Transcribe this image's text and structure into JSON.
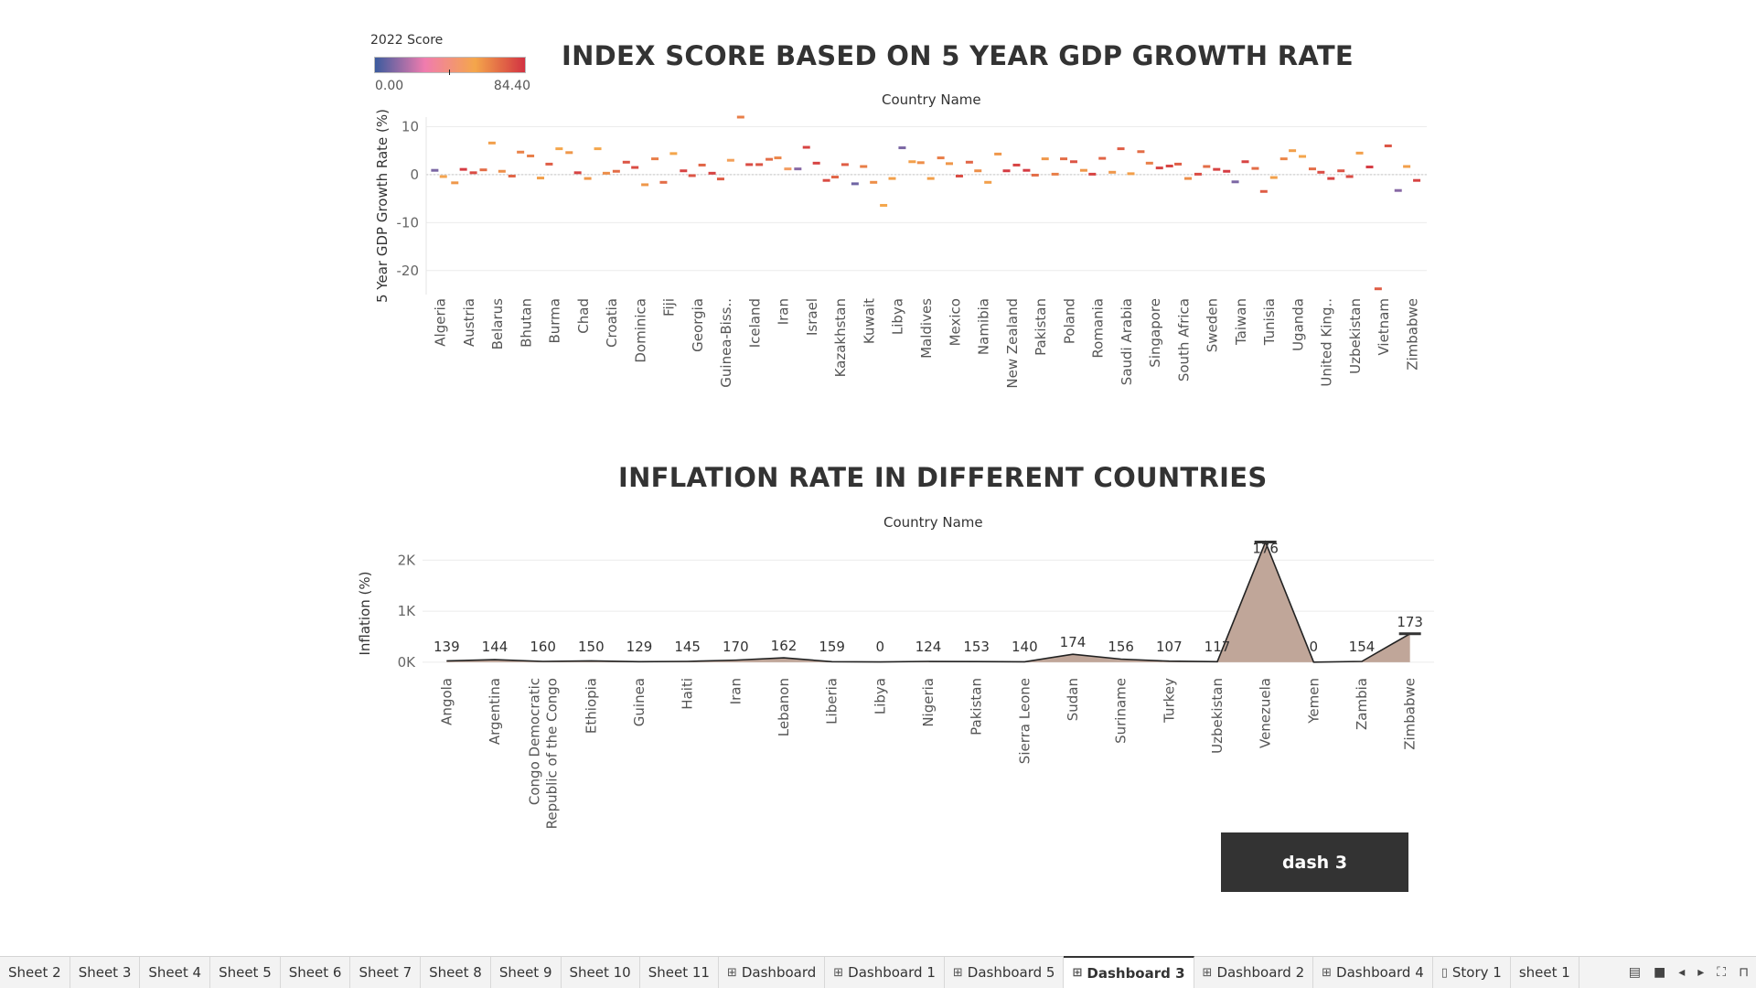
{
  "legend": {
    "title": "2022 Score",
    "min": "0.00",
    "max": "84.40",
    "colors": [
      "#3b5b9e",
      "#f07cae",
      "#f4a64b",
      "#d23242"
    ]
  },
  "chart1": {
    "title": "INDEX SCORE BASED ON 5 YEAR GDP GROWTH RATE",
    "top_label": "Country Name",
    "ylabel": "5 Year GDP Growth Rate (%)"
  },
  "chart2": {
    "title": "INFLATION RATE IN DIFFERENT COUNTRIES",
    "top_label": "Country Name",
    "ylabel": "Inflation (%)"
  },
  "button": {
    "label": "dash 3"
  },
  "tabs": [
    {
      "label": "Sheet 2",
      "icon": ""
    },
    {
      "label": "Sheet 3",
      "icon": ""
    },
    {
      "label": "Sheet 4",
      "icon": ""
    },
    {
      "label": "Sheet 5",
      "icon": ""
    },
    {
      "label": "Sheet 6",
      "icon": ""
    },
    {
      "label": "Sheet 7",
      "icon": ""
    },
    {
      "label": "Sheet 8",
      "icon": ""
    },
    {
      "label": "Sheet 9",
      "icon": ""
    },
    {
      "label": "Sheet 10",
      "icon": ""
    },
    {
      "label": "Sheet 11",
      "icon": ""
    },
    {
      "label": "Dashboard",
      "icon": "dashboard-icon"
    },
    {
      "label": "Dashboard 1",
      "icon": "dashboard-icon"
    },
    {
      "label": "Dashboard 5",
      "icon": "dashboard-icon"
    },
    {
      "label": "Dashboard 3",
      "icon": "dashboard-icon",
      "active": true
    },
    {
      "label": "Dashboard 2",
      "icon": "dashboard-icon"
    },
    {
      "label": "Dashboard 4",
      "icon": "dashboard-icon"
    },
    {
      "label": "Story 1",
      "icon": "story-icon"
    },
    {
      "label": "sheet 1",
      "icon": ""
    }
  ],
  "chart_data": [
    {
      "type": "scatter",
      "title": "INDEX SCORE BASED ON 5 YEAR GDP GROWTH RATE",
      "xlabel": "Country Name",
      "ylabel": "5 Year GDP Growth Rate (%)",
      "ylim": [
        -25,
        12
      ],
      "yticks": [
        10,
        0,
        -10,
        -20
      ],
      "grid": true,
      "color_encoding": "2022 Score",
      "categories": [
        "Algeria",
        "Austria",
        "Belarus",
        "Bhutan",
        "Burma",
        "Chad",
        "Croatia",
        "Dominica",
        "Fiji",
        "Georgia",
        "Guinea-Biss..",
        "Iceland",
        "Iran",
        "Israel",
        "Kazakhstan",
        "Kuwait",
        "Libya",
        "Maldives",
        "Mexico",
        "Namibia",
        "New Zealand",
        "Pakistan",
        "Poland",
        "Romania",
        "Saudi Arabia",
        "Singapore",
        "South Africa",
        "Sweden",
        "Taiwan",
        "Tunisia",
        "Uganda",
        "United King..",
        "Uzbekistan",
        "Vietnam",
        "Zimbabwe"
      ],
      "points": [
        {
          "i": 0.0,
          "y": 0.9,
          "s": 10
        },
        {
          "i": 0.3,
          "y": -0.4,
          "s": 55
        },
        {
          "i": 0.7,
          "y": -1.7,
          "s": 60
        },
        {
          "i": 1.0,
          "y": 1.1,
          "s": 82
        },
        {
          "i": 1.35,
          "y": 0.4,
          "s": 78
        },
        {
          "i": 1.7,
          "y": 1.0,
          "s": 70
        },
        {
          "i": 2.0,
          "y": 6.6,
          "s": 58
        },
        {
          "i": 2.35,
          "y": 0.7,
          "s": 62
        },
        {
          "i": 2.7,
          "y": -0.3,
          "s": 72
        },
        {
          "i": 3.0,
          "y": 4.7,
          "s": 65
        },
        {
          "i": 3.35,
          "y": 3.9,
          "s": 66
        },
        {
          "i": 3.7,
          "y": -0.7,
          "s": 58
        },
        {
          "i": 4.0,
          "y": 2.2,
          "s": 74
        },
        {
          "i": 4.35,
          "y": 5.4,
          "s": 56
        },
        {
          "i": 4.7,
          "y": 4.6,
          "s": 60
        },
        {
          "i": 5.0,
          "y": 0.4,
          "s": 80
        },
        {
          "i": 5.35,
          "y": -0.8,
          "s": 60
        },
        {
          "i": 5.7,
          "y": 5.4,
          "s": 56
        },
        {
          "i": 6.0,
          "y": 0.3,
          "s": 62
        },
        {
          "i": 6.35,
          "y": 0.7,
          "s": 70
        },
        {
          "i": 6.7,
          "y": 2.6,
          "s": 76
        },
        {
          "i": 7.0,
          "y": 1.5,
          "s": 78
        },
        {
          "i": 7.35,
          "y": -2.1,
          "s": 60
        },
        {
          "i": 7.7,
          "y": 3.3,
          "s": 66
        },
        {
          "i": 8.0,
          "y": -1.6,
          "s": 70
        },
        {
          "i": 8.35,
          "y": 4.4,
          "s": 56
        },
        {
          "i": 8.7,
          "y": 0.8,
          "s": 80
        },
        {
          "i": 9.0,
          "y": -0.2,
          "s": 76
        },
        {
          "i": 9.35,
          "y": 2.0,
          "s": 72
        },
        {
          "i": 9.7,
          "y": 0.3,
          "s": 80
        },
        {
          "i": 10.0,
          "y": -0.9,
          "s": 74
        },
        {
          "i": 10.35,
          "y": 3.0,
          "s": 52
        },
        {
          "i": 10.7,
          "y": 12.0,
          "s": 66
        },
        {
          "i": 11.0,
          "y": 2.1,
          "s": 78
        },
        {
          "i": 11.35,
          "y": 2.1,
          "s": 76
        },
        {
          "i": 11.7,
          "y": 3.2,
          "s": 70
        },
        {
          "i": 12.0,
          "y": 3.5,
          "s": 64
        },
        {
          "i": 12.35,
          "y": 1.2,
          "s": 50
        },
        {
          "i": 12.7,
          "y": 1.2,
          "s": 12
        },
        {
          "i": 13.0,
          "y": 5.7,
          "s": 80
        },
        {
          "i": 13.35,
          "y": 2.4,
          "s": 80
        },
        {
          "i": 13.7,
          "y": -1.2,
          "s": 78
        },
        {
          "i": 14.0,
          "y": -0.5,
          "s": 72
        },
        {
          "i": 14.35,
          "y": 2.1,
          "s": 74
        },
        {
          "i": 14.7,
          "y": -1.9,
          "s": 8
        },
        {
          "i": 15.0,
          "y": 1.7,
          "s": 66
        },
        {
          "i": 15.35,
          "y": -1.6,
          "s": 62
        },
        {
          "i": 15.7,
          "y": -6.4,
          "s": 56
        },
        {
          "i": 16.0,
          "y": -0.8,
          "s": 58
        },
        {
          "i": 16.35,
          "y": 5.6,
          "s": 10
        },
        {
          "i": 16.7,
          "y": 2.7,
          "s": 58
        },
        {
          "i": 17.0,
          "y": 2.5,
          "s": 62
        },
        {
          "i": 17.35,
          "y": -0.8,
          "s": 58
        },
        {
          "i": 17.7,
          "y": 3.5,
          "s": 66
        },
        {
          "i": 18.0,
          "y": 2.3,
          "s": 60
        },
        {
          "i": 18.35,
          "y": -0.3,
          "s": 78
        },
        {
          "i": 18.7,
          "y": 2.6,
          "s": 72
        },
        {
          "i": 19.0,
          "y": 0.8,
          "s": 62
        },
        {
          "i": 19.35,
          "y": -1.6,
          "s": 58
        },
        {
          "i": 19.7,
          "y": 4.3,
          "s": 60
        },
        {
          "i": 20.0,
          "y": 0.8,
          "s": 82
        },
        {
          "i": 20.35,
          "y": 2.0,
          "s": 80
        },
        {
          "i": 20.7,
          "y": 0.9,
          "s": 82
        },
        {
          "i": 21.0,
          "y": -0.1,
          "s": 70
        },
        {
          "i": 21.35,
          "y": 3.3,
          "s": 60
        },
        {
          "i": 21.7,
          "y": 0.1,
          "s": 66
        },
        {
          "i": 22.0,
          "y": 3.3,
          "s": 70
        },
        {
          "i": 22.35,
          "y": 2.7,
          "s": 76
        },
        {
          "i": 22.7,
          "y": 0.9,
          "s": 60
        },
        {
          "i": 23.0,
          "y": 0.1,
          "s": 80
        },
        {
          "i": 23.35,
          "y": 3.4,
          "s": 72
        },
        {
          "i": 23.7,
          "y": 0.5,
          "s": 60
        },
        {
          "i": 24.0,
          "y": 5.4,
          "s": 74
        },
        {
          "i": 24.35,
          "y": 0.2,
          "s": 58
        },
        {
          "i": 24.7,
          "y": 4.8,
          "s": 70
        },
        {
          "i": 25.0,
          "y": 2.4,
          "s": 66
        },
        {
          "i": 25.35,
          "y": 1.4,
          "s": 80
        },
        {
          "i": 25.7,
          "y": 1.8,
          "s": 80
        },
        {
          "i": 26.0,
          "y": 2.2,
          "s": 74
        },
        {
          "i": 26.35,
          "y": -0.8,
          "s": 62
        },
        {
          "i": 26.7,
          "y": 0.1,
          "s": 78
        },
        {
          "i": 27.0,
          "y": 1.7,
          "s": 70
        },
        {
          "i": 27.35,
          "y": 1.1,
          "s": 80
        },
        {
          "i": 27.7,
          "y": 0.7,
          "s": 82
        },
        {
          "i": 28.0,
          "y": -1.5,
          "s": 10
        },
        {
          "i": 28.35,
          "y": 2.7,
          "s": 80
        },
        {
          "i": 28.7,
          "y": 1.3,
          "s": 70
        },
        {
          "i": 29.0,
          "y": -3.5,
          "s": 74
        },
        {
          "i": 29.35,
          "y": -0.6,
          "s": 58
        },
        {
          "i": 29.7,
          "y": 3.3,
          "s": 64
        },
        {
          "i": 30.0,
          "y": 5.0,
          "s": 58
        },
        {
          "i": 30.35,
          "y": 3.8,
          "s": 56
        },
        {
          "i": 30.7,
          "y": 1.2,
          "s": 70
        },
        {
          "i": 31.0,
          "y": 0.5,
          "s": 78
        },
        {
          "i": 31.35,
          "y": -0.8,
          "s": 80
        },
        {
          "i": 31.7,
          "y": 0.8,
          "s": 76
        },
        {
          "i": 32.0,
          "y": -0.4,
          "s": 78
        },
        {
          "i": 32.35,
          "y": 4.5,
          "s": 58
        },
        {
          "i": 32.7,
          "y": 1.6,
          "s": 82
        },
        {
          "i": 33.0,
          "y": -23.8,
          "s": 74
        },
        {
          "i": 33.35,
          "y": 6.0,
          "s": 76
        },
        {
          "i": 33.7,
          "y": -3.3,
          "s": 12
        },
        {
          "i": 34.0,
          "y": 1.7,
          "s": 58
        },
        {
          "i": 34.35,
          "y": -1.2,
          "s": 80
        }
      ]
    },
    {
      "type": "area",
      "title": "INFLATION RATE IN DIFFERENT COUNTRIES",
      "xlabel": "Country Name",
      "ylabel": "Inflation (%)",
      "ylim": [
        -200,
        2400
      ],
      "yticks": [
        0,
        1000,
        2000
      ],
      "ytick_labels": [
        "0K",
        "1K",
        "2K"
      ],
      "grid": true,
      "categories": [
        "Angola",
        "Argentina",
        "Congo Democratic Republic of the Congo",
        "Ethiopia",
        "Guinea",
        "Haiti",
        "Iran",
        "Lebanon",
        "Liberia",
        "Libya",
        "Nigeria",
        "Pakistan",
        "Sierra Leone",
        "Sudan",
        "Suriname",
        "Turkey",
        "Uzbekistan",
        "Venezuela",
        "Yemen",
        "Zambia",
        "Zimbabwe"
      ],
      "values": [
        25,
        50,
        15,
        25,
        10,
        15,
        40,
        85,
        10,
        5,
        15,
        12,
        8,
        155,
        60,
        20,
        10,
        2355,
        0,
        15,
        557
      ],
      "data_labels": [
        "139",
        "144",
        "160",
        "150",
        "129",
        "145",
        "170",
        "162",
        "159",
        "0",
        "124",
        "153",
        "140",
        "174",
        "156",
        "107",
        "117",
        "176",
        "0",
        "154",
        "173"
      ]
    }
  ]
}
